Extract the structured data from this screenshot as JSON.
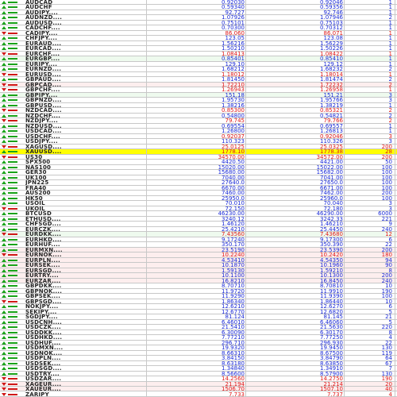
{
  "colors": {
    "up": "#1aa31a",
    "down": "#d01818",
    "bid_blue": "#1a2ad8",
    "bid_red": "#e01818",
    "highlight": "#ffff00"
  },
  "rows": [
    {
      "symbol": "AUDCAD",
      "bid": "0.92030",
      "ask": "0.92046",
      "spread": "1",
      "dir": "up",
      "color": "blue",
      "bg": ""
    },
    {
      "symbol": "AUDCHF",
      "bid": "0.59340",
      "ask": "0.59356",
      "spread": "1",
      "dir": "up",
      "color": "blue",
      "bg": ""
    },
    {
      "symbol": "AUDJPY....",
      "bid": "92.727",
      "ask": "92.746",
      "spread": "1",
      "dir": "up",
      "color": "blue",
      "bg": ""
    },
    {
      "symbol": "AUDNZD....",
      "bid": "1.07926",
      "ask": "1.07946",
      "spread": "2",
      "dir": "up",
      "color": "blue",
      "bg": ""
    },
    {
      "symbol": "AUDUSD....",
      "bid": "0.75101",
      "ask": "0.75103",
      "spread": "1",
      "dir": "up",
      "color": "blue",
      "bg": ""
    },
    {
      "symbol": "CADCHF....",
      "bid": "0.70300",
      "ask": "0.70312",
      "spread": "1",
      "dir": "up",
      "color": "blue",
      "bg": ""
    },
    {
      "symbol": "CADJPY....",
      "bid": "86.060",
      "ask": "86.071",
      "spread": "1",
      "dir": "down",
      "color": "red",
      "bg": ""
    },
    {
      "symbol": "CHFJPY....",
      "bid": "123.05",
      "ask": "123.08",
      "spread": "1",
      "dir": "up",
      "color": "blue",
      "bg": ""
    },
    {
      "symbol": "EURAUD....",
      "bid": "1.56216",
      "ask": "1.56229",
      "spread": "1",
      "dir": "up",
      "color": "blue",
      "bg": ""
    },
    {
      "symbol": "EURCAD....",
      "bid": "1.50210",
      "ask": "1.50226",
      "spread": "1",
      "dir": "up",
      "color": "blue",
      "bg": ""
    },
    {
      "symbol": "EURCHF....",
      "bid": "1.08413",
      "ask": "1.08422",
      "spread": "1",
      "dir": "down",
      "color": "red",
      "bg": ""
    },
    {
      "symbol": "EURGBP....",
      "bid": "0.85401",
      "ask": "0.85410",
      "spread": "1",
      "dir": "up",
      "color": "blue",
      "bg": "green"
    },
    {
      "symbol": "EURJPY....",
      "bid": "129.10",
      "ask": "129.12",
      "spread": "1",
      "dir": "up",
      "color": "blue",
      "bg": ""
    },
    {
      "symbol": "EURNZD....",
      "bid": "1.68212",
      "ask": "1.68232",
      "spread": "2",
      "dir": "up",
      "color": "blue",
      "bg": ""
    },
    {
      "symbol": "EURUSD....",
      "bid": "1.18012",
      "ask": "1.18014",
      "spread": "1",
      "dir": "down",
      "color": "red",
      "bg": ""
    },
    {
      "symbol": "GBPAUD....",
      "bid": "1.81450",
      "ask": "1.81474",
      "spread": "2",
      "dir": "up",
      "color": "blue",
      "bg": ""
    },
    {
      "symbol": "GBPCAD....",
      "bid": "1.72210",
      "ask": "1.72232",
      "spread": "2",
      "dir": "down",
      "color": "red",
      "bg": "pink"
    },
    {
      "symbol": "GBPCHF....",
      "bid": "1.26943",
      "ask": "1.26958",
      "spread": "1",
      "dir": "down",
      "color": "red",
      "bg": ""
    },
    {
      "symbol": "GBPJPY....",
      "bid": "151.18",
      "ask": "151.21",
      "spread": "3",
      "dir": "up",
      "color": "blue",
      "bg": "green"
    },
    {
      "symbol": "GBPNZD....",
      "bid": "1.95730",
      "ask": "1.95766",
      "spread": "3",
      "dir": "up",
      "color": "blue",
      "bg": ""
    },
    {
      "symbol": "GBPUSD....",
      "bid": "1.38216",
      "ask": "1.38219",
      "spread": "1",
      "dir": "up",
      "color": "blue",
      "bg": ""
    },
    {
      "symbol": "NZDCAD....",
      "bid": "0.85300",
      "ask": "0.85321",
      "spread": "2",
      "dir": "down",
      "color": "red",
      "bg": ""
    },
    {
      "symbol": "NZDCHF....",
      "bid": "0.54800",
      "ask": "0.54821",
      "spread": "2",
      "dir": "up",
      "color": "blue",
      "bg": ""
    },
    {
      "symbol": "NZDJPY....",
      "bid": "79.745",
      "ask": "79.766",
      "spread": "2",
      "dir": "down",
      "color": "red",
      "bg": ""
    },
    {
      "symbol": "NZDUSD....",
      "bid": "0.69554",
      "ask": "0.69557",
      "spread": "1",
      "dir": "up",
      "color": "blue",
      "bg": ""
    },
    {
      "symbol": "USDCAD....",
      "bid": "1.26800",
      "ask": "1.26813",
      "spread": "1",
      "dir": "up",
      "color": "blue",
      "bg": ""
    },
    {
      "symbol": "USDCHF....",
      "bid": "0.92037",
      "ask": "0.92046",
      "spread": "3",
      "dir": "up",
      "color": "red",
      "bg": ""
    },
    {
      "symbol": "USDJPY....",
      "bid": "110.323",
      "ask": "110.326",
      "spread": "3",
      "dir": "up",
      "color": "blue",
      "bg": ""
    },
    {
      "symbol": "XAGUSD....",
      "bid": "25.0125",
      "ask": "25.0325",
      "spread": "200",
      "dir": "down",
      "color": "red",
      "bg": ""
    },
    {
      "symbol": "XAUUSD....",
      "bid": "1778.10",
      "ask": "1778.38",
      "spread": "28",
      "dir": "up",
      "color": "red",
      "bg": "selected"
    },
    {
      "symbol": "US30",
      "bid": "34570.00",
      "ask": "34572.00",
      "spread": "200",
      "dir": "down",
      "color": "red",
      "bg": ""
    },
    {
      "symbol": "SPX500",
      "bid": "4420.50",
      "ask": "4421.00",
      "spread": "50",
      "dir": "up",
      "color": "blue",
      "bg": ""
    },
    {
      "symbol": "NAS100",
      "bid": "15020.00",
      "ask": "15022.00",
      "spread": "100",
      "dir": "up",
      "color": "blue",
      "bg": ""
    },
    {
      "symbol": "GER30",
      "bid": "15680.00",
      "ask": "15682.00",
      "spread": "100",
      "dir": "up",
      "color": "blue",
      "bg": ""
    },
    {
      "symbol": "UK100",
      "bid": "7040.00",
      "ask": "7041.00",
      "spread": "100",
      "dir": "up",
      "color": "blue",
      "bg": ""
    },
    {
      "symbol": "JPN225",
      "bid": "27640.0",
      "ask": "27650.0",
      "spread": "100",
      "dir": "up",
      "color": "blue",
      "bg": ""
    },
    {
      "symbol": "FRA40",
      "bid": "6670.00",
      "ask": "6671.00",
      "spread": "100",
      "dir": "up",
      "color": "blue",
      "bg": ""
    },
    {
      "symbol": "AUS200",
      "bid": "7460.00",
      "ask": "7462.00",
      "spread": "200",
      "dir": "up",
      "color": "blue",
      "bg": ""
    },
    {
      "symbol": "HK50",
      "bid": "25950.0",
      "ask": "25960.0",
      "spread": "100",
      "dir": "up",
      "color": "blue",
      "bg": ""
    },
    {
      "symbol": "USOIL",
      "bid": "70.010",
      "ask": "70.040",
      "spread": "3",
      "dir": "up",
      "color": "blue",
      "bg": ""
    },
    {
      "symbol": "UKOIL",
      "bid": "72.150",
      "ask": "72.180",
      "spread": "3",
      "dir": "down",
      "color": "blue",
      "bg": ""
    },
    {
      "symbol": "BTCUSD",
      "bid": "46230.00",
      "ask": "46290.00",
      "spread": "6000",
      "dir": "up",
      "color": "blue",
      "bg": ""
    },
    {
      "symbol": "ETHUSD....",
      "bid": "3240.12",
      "ask": "3242.33",
      "spread": "221",
      "dir": "up",
      "color": "blue",
      "bg": ""
    },
    {
      "symbol": "CHFSGD....",
      "bid": "1.46120",
      "ask": "1.46210",
      "spread": "9",
      "dir": "up",
      "color": "blue",
      "bg": ""
    },
    {
      "symbol": "EURCZK....",
      "bid": "25.4210",
      "ask": "25.4450",
      "spread": "240",
      "dir": "up",
      "color": "blue",
      "bg": ""
    },
    {
      "symbol": "EURDKK....",
      "bid": "7.43560",
      "ask": "7.43680",
      "spread": "12",
      "dir": "down",
      "color": "red",
      "bg": "green"
    },
    {
      "symbol": "EURHKD....",
      "bid": "9.17240",
      "ask": "9.17300",
      "spread": "6",
      "dir": "up",
      "color": "blue",
      "bg": ""
    },
    {
      "symbol": "EURHUF....",
      "bid": "350.170",
      "ask": "350.390",
      "spread": "22",
      "dir": "up",
      "color": "blue",
      "bg": ""
    },
    {
      "symbol": "EURMXN....",
      "bid": "23.5190",
      "ask": "23.5390",
      "spread": "200",
      "dir": "up",
      "color": "blue",
      "bg": "pink"
    },
    {
      "symbol": "EURNOK....",
      "bid": "10.2240",
      "ask": "10.2420",
      "spread": "180",
      "dir": "down",
      "color": "red",
      "bg": "pink"
    },
    {
      "symbol": "EURPLN....",
      "bid": "4.53410",
      "ask": "4.54350",
      "spread": "94",
      "dir": "up",
      "color": "blue",
      "bg": "pink"
    },
    {
      "symbol": "EURSEK....",
      "bid": "10.1870",
      "ask": "10.1960",
      "spread": "90",
      "dir": "up",
      "color": "blue",
      "bg": "pink"
    },
    {
      "symbol": "EURSGD....",
      "bid": "1.59130",
      "ask": "1.59210",
      "spread": "8",
      "dir": "up",
      "color": "blue",
      "bg": "pink"
    },
    {
      "symbol": "EURTRY....",
      "bid": "10.1100",
      "ask": "10.1300",
      "spread": "200",
      "dir": "up",
      "color": "blue",
      "bg": "pink"
    },
    {
      "symbol": "EURZAR....",
      "bid": "16.8210",
      "ask": "16.8450",
      "spread": "240",
      "dir": "up",
      "color": "blue",
      "bg": "pink"
    },
    {
      "symbol": "GBPDKK....",
      "bid": "8.70710",
      "ask": "8.70810",
      "spread": "10",
      "dir": "up",
      "color": "blue",
      "bg": ""
    },
    {
      "symbol": "GBPNOK....",
      "bid": "11.9720",
      "ask": "11.9910",
      "spread": "190",
      "dir": "up",
      "color": "blue",
      "bg": ""
    },
    {
      "symbol": "GBPSEK....",
      "bid": "11.9290",
      "ask": "11.9390",
      "spread": "100",
      "dir": "up",
      "color": "blue",
      "bg": ""
    },
    {
      "symbol": "GBPSGD....",
      "bid": "1.86340",
      "ask": "1.86440",
      "spread": "10",
      "dir": "down",
      "color": "blue",
      "bg": ""
    },
    {
      "symbol": "NOKJPY....",
      "bid": "12.6210",
      "ask": "12.6270",
      "spread": "6",
      "dir": "up",
      "color": "blue",
      "bg": ""
    },
    {
      "symbol": "SEKJPY....",
      "bid": "12.6770",
      "ask": "12.6820",
      "spread": "5",
      "dir": "up",
      "color": "blue",
      "bg": ""
    },
    {
      "symbol": "SGDJPY....",
      "bid": "81.124",
      "ask": "81.145",
      "spread": "21",
      "dir": "up",
      "color": "blue",
      "bg": ""
    },
    {
      "symbol": "USDCNH....",
      "bid": "6.46010",
      "ask": "6.46060",
      "spread": "5",
      "dir": "up",
      "color": "blue",
      "bg": ""
    },
    {
      "symbol": "USDCZK....",
      "bid": "21.5410",
      "ask": "21.5630",
      "spread": "220",
      "dir": "up",
      "color": "blue",
      "bg": ""
    },
    {
      "symbol": "USDDKK....",
      "bid": "6.30090",
      "ask": "6.30170",
      "spread": "8",
      "dir": "up",
      "color": "blue",
      "bg": ""
    },
    {
      "symbol": "USDHKD....",
      "bid": "7.77210",
      "ask": "7.77250",
      "spread": "4",
      "dir": "up",
      "color": "blue",
      "bg": ""
    },
    {
      "symbol": "USDHUF....",
      "bid": "296.710",
      "ask": "296.930",
      "spread": "22",
      "dir": "up",
      "color": "blue",
      "bg": ""
    },
    {
      "symbol": "USDMXN....",
      "bid": "19.9320",
      "ask": "19.9450",
      "spread": "130",
      "dir": "up",
      "color": "blue",
      "bg": ""
    },
    {
      "symbol": "USDNOK....",
      "bid": "8.66310",
      "ask": "8.67500",
      "spread": "119",
      "dir": "up",
      "color": "blue",
      "bg": ""
    },
    {
      "symbol": "USDPLN....",
      "bid": "3.84150",
      "ask": "3.84790",
      "spread": "64",
      "dir": "up",
      "color": "blue",
      "bg": ""
    },
    {
      "symbol": "USDSEK....",
      "bid": "8.63180",
      "ask": "8.63850",
      "spread": "67",
      "dir": "up",
      "color": "blue",
      "bg": ""
    },
    {
      "symbol": "USDSGD....",
      "bid": "1.34840",
      "ask": "1.34910",
      "spread": "7",
      "dir": "up",
      "color": "blue",
      "bg": ""
    },
    {
      "symbol": "USDTRY....",
      "bid": "8.56600",
      "ask": "8.57900",
      "spread": "130",
      "dir": "up",
      "color": "blue",
      "bg": ""
    },
    {
      "symbol": "USDZAR....",
      "bid": "14.2560",
      "ask": "14.2750",
      "spread": "190",
      "dir": "down",
      "color": "red",
      "bg": ""
    },
    {
      "symbol": "XAGEUR....",
      "bid": "21.194",
      "ask": "21.214",
      "spread": "20",
      "dir": "down",
      "color": "red",
      "bg": "pink"
    },
    {
      "symbol": "XAUEUR....",
      "bid": "1506.70",
      "ask": "1507.10",
      "spread": "40",
      "dir": "down",
      "color": "red",
      "bg": "pink"
    },
    {
      "symbol": "ZARJPY",
      "bid": "7.733",
      "ask": "7.737",
      "spread": "4",
      "dir": "down",
      "color": "red",
      "bg": ""
    }
  ]
}
